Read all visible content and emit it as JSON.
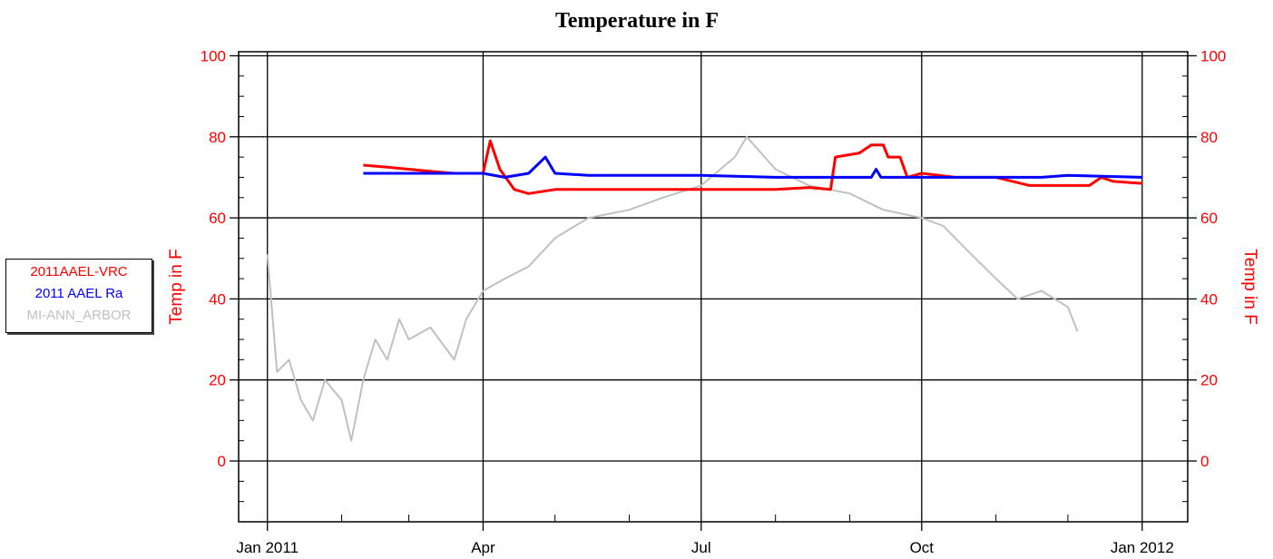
{
  "chart_data": {
    "type": "line",
    "title": "Temperature in F",
    "ylabel_left": "Temp in F",
    "ylabel_right": "Temp in F",
    "ylim": [
      -15,
      101
    ],
    "yticks": [
      0,
      20,
      40,
      60,
      80,
      100
    ],
    "xlim": [
      "2010-12-20",
      "2012-01-20"
    ],
    "xticks": [
      {
        "label": "Jan 2011",
        "date": "2011-01-01"
      },
      {
        "label": "Apr",
        "date": "2011-04-01"
      },
      {
        "label": "Jul",
        "date": "2011-07-01"
      },
      {
        "label": "Oct",
        "date": "2011-10-01"
      },
      {
        "label": "Jan 2012",
        "date": "2012-01-01"
      }
    ],
    "grid": true,
    "legend_position": "left",
    "series": [
      {
        "name": "2011AAEL-VRC",
        "color": "#ff0000",
        "points": [
          [
            "2011-02-10",
            73
          ],
          [
            "2011-02-20",
            72.5
          ],
          [
            "2011-03-01",
            72
          ],
          [
            "2011-03-10",
            71.5
          ],
          [
            "2011-03-20",
            71
          ],
          [
            "2011-04-01",
            71
          ],
          [
            "2011-04-04",
            79
          ],
          [
            "2011-04-08",
            72
          ],
          [
            "2011-04-14",
            67
          ],
          [
            "2011-04-20",
            66
          ],
          [
            "2011-05-01",
            67
          ],
          [
            "2011-05-15",
            67
          ],
          [
            "2011-06-01",
            67
          ],
          [
            "2011-06-15",
            67
          ],
          [
            "2011-07-01",
            67
          ],
          [
            "2011-07-15",
            67
          ],
          [
            "2011-08-01",
            67
          ],
          [
            "2011-08-15",
            67.5
          ],
          [
            "2011-08-24",
            67
          ],
          [
            "2011-08-26",
            75
          ],
          [
            "2011-09-05",
            76
          ],
          [
            "2011-09-10",
            78
          ],
          [
            "2011-09-15",
            78
          ],
          [
            "2011-09-17",
            75
          ],
          [
            "2011-09-22",
            75
          ],
          [
            "2011-09-25",
            70
          ],
          [
            "2011-10-01",
            71
          ],
          [
            "2011-10-15",
            70
          ],
          [
            "2011-11-01",
            70
          ],
          [
            "2011-11-08",
            69
          ],
          [
            "2011-11-15",
            68
          ],
          [
            "2011-11-25",
            68
          ],
          [
            "2011-12-01",
            68
          ],
          [
            "2011-12-10",
            68
          ],
          [
            "2011-12-15",
            70
          ],
          [
            "2011-12-20",
            69
          ],
          [
            "2012-01-01",
            68.5
          ]
        ]
      },
      {
        "name": "2011 AAEL Ra",
        "color": "#0000ff",
        "points": [
          [
            "2011-02-10",
            71
          ],
          [
            "2011-03-01",
            71
          ],
          [
            "2011-04-01",
            71
          ],
          [
            "2011-04-10",
            70
          ],
          [
            "2011-04-20",
            71
          ],
          [
            "2011-04-27",
            75
          ],
          [
            "2011-05-01",
            71
          ],
          [
            "2011-05-15",
            70.5
          ],
          [
            "2011-06-01",
            70.5
          ],
          [
            "2011-07-01",
            70.5
          ],
          [
            "2011-08-01",
            70
          ],
          [
            "2011-08-20",
            70
          ],
          [
            "2011-09-10",
            70
          ],
          [
            "2011-09-12",
            72
          ],
          [
            "2011-09-14",
            70
          ],
          [
            "2011-10-01",
            70
          ],
          [
            "2011-11-01",
            70
          ],
          [
            "2011-11-20",
            70
          ],
          [
            "2011-12-01",
            70.5
          ],
          [
            "2012-01-01",
            70
          ]
        ]
      },
      {
        "name": "MI-ANN_ARBOR",
        "color": "#c0c0c0",
        "points": [
          [
            "2011-01-01",
            51
          ],
          [
            "2011-01-05",
            22
          ],
          [
            "2011-01-10",
            25
          ],
          [
            "2011-01-15",
            15
          ],
          [
            "2011-01-20",
            10
          ],
          [
            "2011-01-25",
            20
          ],
          [
            "2011-02-01",
            15
          ],
          [
            "2011-02-05",
            5
          ],
          [
            "2011-02-10",
            20
          ],
          [
            "2011-02-15",
            30
          ],
          [
            "2011-02-20",
            25
          ],
          [
            "2011-02-25",
            35
          ],
          [
            "2011-03-01",
            30
          ],
          [
            "2011-03-10",
            33
          ],
          [
            "2011-03-20",
            25
          ],
          [
            "2011-03-25",
            35
          ],
          [
            "2011-04-01",
            42
          ],
          [
            "2011-04-10",
            45
          ],
          [
            "2011-04-20",
            48
          ],
          [
            "2011-05-01",
            55
          ],
          [
            "2011-05-15",
            60
          ],
          [
            "2011-06-01",
            62
          ],
          [
            "2011-06-15",
            65
          ],
          [
            "2011-07-01",
            68
          ],
          [
            "2011-07-15",
            75
          ],
          [
            "2011-07-20",
            80
          ],
          [
            "2011-08-01",
            72
          ],
          [
            "2011-08-15",
            68
          ],
          [
            "2011-09-01",
            66
          ],
          [
            "2011-09-15",
            62
          ],
          [
            "2011-10-01",
            60
          ],
          [
            "2011-10-10",
            58
          ],
          [
            "2011-10-20",
            52
          ],
          [
            "2011-11-01",
            45
          ],
          [
            "2011-11-10",
            40
          ],
          [
            "2011-11-20",
            42
          ],
          [
            "2011-12-01",
            38
          ],
          [
            "2011-12-05",
            32
          ]
        ]
      }
    ]
  },
  "legend": {
    "items": [
      {
        "label": "2011AAEL-VRC",
        "color": "#ff0000"
      },
      {
        "label": "2011 AAEL Ra",
        "color": "#0000ff"
      },
      {
        "label": "MI-ANN_ARBOR",
        "color": "#c0c0c0"
      }
    ]
  }
}
